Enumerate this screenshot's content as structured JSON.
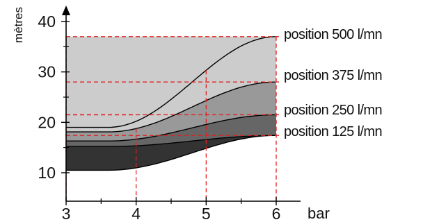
{
  "chart_data": {
    "type": "area",
    "title": "",
    "xlabel": "bar",
    "ylabel": "mètres",
    "xlim": [
      3,
      6
    ],
    "ylim": [
      8,
      40
    ],
    "x_ticks": [
      3,
      4,
      5,
      6
    ],
    "y_ticks": [
      10,
      20,
      30,
      40
    ],
    "grid": false,
    "series": [
      {
        "name": "position 125 l/mn",
        "color": "#333333",
        "start": 15.2,
        "end": 17.4,
        "lower_start": 10.5,
        "lower_end": 17.4,
        "marker_x": [
          4
        ]
      },
      {
        "name": "position 250 l/mn",
        "color": "#666666",
        "start": 16.3,
        "end": 21.5,
        "lower_start": 15.2,
        "lower_end": 17.4,
        "marker_x": [
          4
        ]
      },
      {
        "name": "position 375 l/mn",
        "color": "#999999",
        "start": 18.1,
        "end": 28.0,
        "lower_start": 16.3,
        "lower_end": 21.5,
        "marker_x": [
          4
        ]
      },
      {
        "name": "position 500 l/mn",
        "color": "#cccccc",
        "start": 19.0,
        "end": 37.0,
        "lower_start": 18.1,
        "lower_end": 28.0,
        "upper_flat": 37.0,
        "upper_flat_end": 28.0,
        "marker_x": [
          5
        ]
      }
    ]
  }
}
